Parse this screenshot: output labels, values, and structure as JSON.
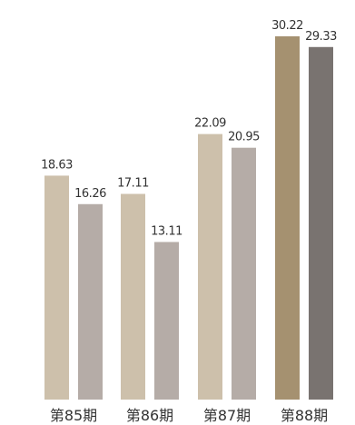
{
  "chart_data": {
    "type": "bar",
    "title": "",
    "xlabel": "",
    "ylabel": "",
    "categories": [
      "第85期",
      "第86期",
      "第87期",
      "第88期"
    ],
    "series": [
      {
        "values": [
          18.63,
          17.11,
          22.09,
          30.22
        ],
        "colors": [
          "#cdc0ab",
          "#cdc0ab",
          "#cdc0ab",
          "#a59170"
        ]
      },
      {
        "values": [
          16.26,
          13.11,
          20.95,
          29.33
        ],
        "colors": [
          "#b5aca7",
          "#b5aca7",
          "#b5aca7",
          "#797370"
        ]
      }
    ],
    "ylim": [
      0,
      30.22
    ],
    "grid": false,
    "legend": "none"
  }
}
